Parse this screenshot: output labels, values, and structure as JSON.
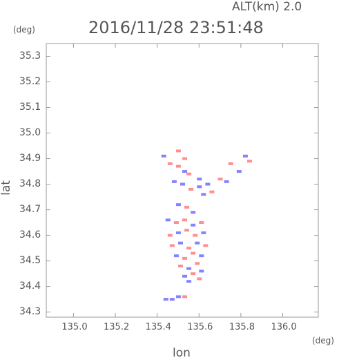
{
  "header": {
    "alt_label": "ALT(km) 2.0",
    "timestamp": "2016/11/28 23:51:48",
    "y_unit": "(deg)",
    "x_unit": "(deg)"
  },
  "chart_data": {
    "type": "scatter",
    "title": "2016/11/28 23:51:48",
    "xlabel": "lon",
    "ylabel": "lat",
    "xlim": [
      134.87,
      136.17
    ],
    "ylim": [
      34.28,
      35.35
    ],
    "x_ticks": [
      "135.0",
      "135.2",
      "135.4",
      "135.6",
      "135.8",
      "136.0"
    ],
    "y_ticks": [
      "34.3",
      "34.4",
      "34.5",
      "34.6",
      "34.7",
      "34.8",
      "34.9",
      "35.0",
      "35.1",
      "35.2",
      "35.3"
    ],
    "grid": false,
    "colors": {
      "positive": "#ff6a6a",
      "negative": "#5a5aff",
      "axis": "#9a9a9a"
    },
    "series": [
      {
        "name": "",
        "x": [
          135.43,
          135.46,
          135.5,
          135.53,
          135.55,
          135.6,
          135.64,
          135.7,
          135.73,
          135.75,
          135.48,
          135.52,
          135.56,
          135.6,
          135.62,
          135.66,
          135.5,
          135.54,
          135.57,
          135.45,
          135.49,
          135.53,
          135.57,
          135.61,
          135.46,
          135.5,
          135.54,
          135.58,
          135.62,
          135.47,
          135.51,
          135.55,
          135.59,
          135.63,
          135.49,
          135.53,
          135.57,
          135.61,
          135.51,
          135.55,
          135.59,
          135.53,
          135.57,
          135.61,
          135.55,
          135.6,
          135.44,
          135.47,
          135.5,
          135.53,
          135.82,
          135.84,
          135.79,
          135.5,
          135.53
        ],
        "y": [
          34.91,
          34.88,
          34.87,
          34.85,
          34.84,
          34.82,
          34.8,
          34.82,
          34.81,
          34.88,
          34.81,
          34.8,
          34.78,
          34.79,
          34.76,
          34.77,
          34.72,
          34.71,
          34.69,
          34.66,
          34.65,
          34.66,
          34.64,
          34.65,
          34.6,
          34.61,
          34.62,
          34.6,
          34.61,
          34.56,
          34.57,
          34.55,
          34.57,
          34.56,
          34.52,
          34.51,
          34.53,
          34.52,
          34.48,
          34.47,
          34.49,
          34.44,
          34.45,
          34.46,
          34.42,
          34.43,
          34.35,
          34.35,
          34.36,
          34.36,
          34.91,
          34.89,
          34.85,
          34.93,
          34.9
        ],
        "values": [
          -1,
          1,
          1,
          -1,
          1,
          -1,
          -1,
          1,
          -1,
          1,
          -1,
          -1,
          1,
          -1,
          -1,
          1,
          -1,
          1,
          -1,
          -1,
          1,
          1,
          -1,
          1,
          1,
          -1,
          1,
          1,
          -1,
          1,
          -1,
          1,
          -1,
          1,
          -1,
          1,
          1,
          -1,
          1,
          -1,
          1,
          -1,
          1,
          -1,
          -1,
          1,
          -1,
          -1,
          -1,
          1,
          -1,
          1,
          -1,
          1,
          1
        ]
      }
    ]
  }
}
